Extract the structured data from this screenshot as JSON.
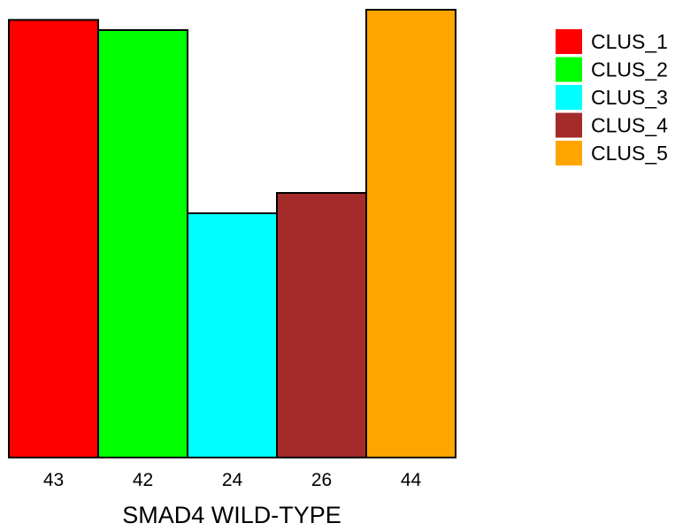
{
  "chart_data": {
    "type": "bar",
    "xlabel": "SMAD4 WILD-TYPE",
    "categories": [
      "CLUS_1",
      "CLUS_2",
      "CLUS_3",
      "CLUS_4",
      "CLUS_5"
    ],
    "values": [
      43,
      42,
      24,
      26,
      44
    ],
    "bar_labels": [
      "43",
      "42",
      "24",
      "26",
      "44"
    ],
    "colors": [
      "#FF0000",
      "#00FF00",
      "#00FFFF",
      "#A52A2A",
      "#FFA500"
    ],
    "ylim": [
      0,
      44
    ],
    "grid": false,
    "legend": {
      "position": "top-right",
      "entries": [
        "CLUS_1",
        "CLUS_2",
        "CLUS_3",
        "CLUS_4",
        "CLUS_5"
      ]
    }
  }
}
